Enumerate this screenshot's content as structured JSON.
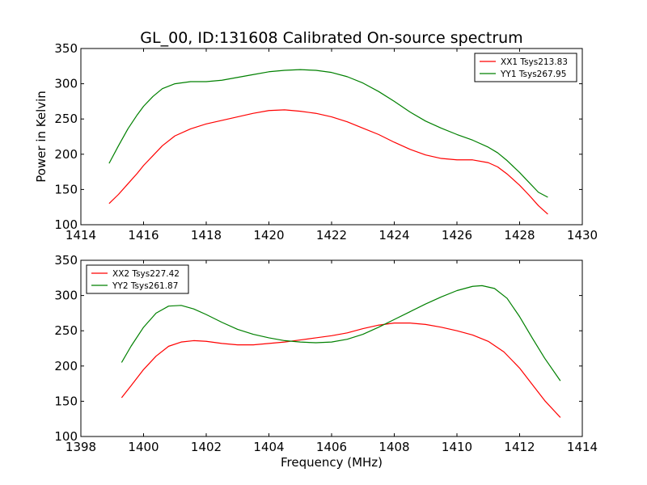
{
  "figure": {
    "title": "GL_00, ID:131608 Calibrated On-source spectrum",
    "ylabel": "Power in Kelvin",
    "xlabel": "Frequency (MHz)"
  },
  "chart_data": [
    {
      "type": "line",
      "title": "GL_00, ID:131608 Calibrated On-source spectrum",
      "xlabel": "",
      "ylabel": "Power in Kelvin",
      "xlim": [
        1414,
        1430
      ],
      "ylim": [
        100,
        350
      ],
      "xticks": [
        "1414",
        "1416",
        "1418",
        "1420",
        "1422",
        "1424",
        "1426",
        "1428",
        "1430"
      ],
      "yticks": [
        "100",
        "150",
        "200",
        "250",
        "300",
        "350"
      ],
      "grid": false,
      "legend_position": "top-right",
      "series": [
        {
          "name": "XX1 Tsys213.83",
          "color": "#ff0000",
          "x": [
            1414.9,
            1415.2,
            1415.5,
            1415.8,
            1416.0,
            1416.3,
            1416.6,
            1417.0,
            1417.5,
            1418.0,
            1418.5,
            1419.0,
            1419.5,
            1420.0,
            1420.5,
            1421.0,
            1421.5,
            1422.0,
            1422.5,
            1423.0,
            1423.5,
            1424.0,
            1424.5,
            1425.0,
            1425.5,
            1426.0,
            1426.5,
            1427.0,
            1427.3,
            1427.6,
            1428.0,
            1428.3,
            1428.6,
            1428.9
          ],
          "y": [
            130,
            143,
            158,
            173,
            184,
            198,
            212,
            226,
            236,
            243,
            248,
            253,
            258,
            262,
            263,
            261,
            258,
            253,
            246,
            237,
            228,
            217,
            207,
            199,
            194,
            192,
            192,
            188,
            182,
            172,
            156,
            142,
            127,
            115
          ]
        },
        {
          "name": "YY1 Tsys267.95",
          "color": "#008000",
          "x": [
            1414.9,
            1415.2,
            1415.5,
            1415.8,
            1416.0,
            1416.3,
            1416.6,
            1417.0,
            1417.5,
            1418.0,
            1418.5,
            1419.0,
            1419.5,
            1420.0,
            1420.5,
            1421.0,
            1421.5,
            1422.0,
            1422.5,
            1423.0,
            1423.5,
            1424.0,
            1424.5,
            1425.0,
            1425.5,
            1426.0,
            1426.5,
            1427.0,
            1427.3,
            1427.6,
            1428.0,
            1428.3,
            1428.6,
            1428.9
          ],
          "y": [
            187,
            212,
            236,
            256,
            268,
            282,
            293,
            300,
            303,
            303,
            305,
            309,
            313,
            317,
            319,
            320,
            319,
            316,
            310,
            301,
            289,
            275,
            260,
            247,
            237,
            228,
            220,
            210,
            202,
            191,
            174,
            160,
            146,
            139
          ]
        }
      ]
    },
    {
      "type": "line",
      "title": "",
      "xlabel": "Frequency (MHz)",
      "ylabel": "",
      "xlim": [
        1398,
        1414
      ],
      "ylim": [
        100,
        350
      ],
      "xticks": [
        "1398",
        "1400",
        "1402",
        "1404",
        "1406",
        "1408",
        "1410",
        "1412",
        "1414"
      ],
      "yticks": [
        "100",
        "150",
        "200",
        "250",
        "300",
        "350"
      ],
      "grid": false,
      "legend_position": "top-left",
      "series": [
        {
          "name": "XX2 Tsys227.42",
          "color": "#ff0000",
          "x": [
            1399.3,
            1399.6,
            1400.0,
            1400.4,
            1400.8,
            1401.2,
            1401.6,
            1402.0,
            1402.5,
            1403.0,
            1403.5,
            1404.0,
            1404.5,
            1405.0,
            1405.5,
            1406.0,
            1406.5,
            1407.0,
            1407.5,
            1408.0,
            1408.5,
            1409.0,
            1409.5,
            1410.0,
            1410.5,
            1411.0,
            1411.5,
            1412.0,
            1412.4,
            1412.8,
            1413.3
          ],
          "y": [
            155,
            172,
            195,
            214,
            228,
            234,
            236,
            235,
            232,
            230,
            230,
            232,
            234,
            237,
            240,
            243,
            247,
            253,
            258,
            261,
            261,
            259,
            255,
            250,
            244,
            235,
            220,
            197,
            174,
            151,
            127
          ]
        },
        {
          "name": "YY2 Tsys261.87",
          "color": "#008000",
          "x": [
            1399.3,
            1399.6,
            1400.0,
            1400.4,
            1400.8,
            1401.2,
            1401.6,
            1402.0,
            1402.5,
            1403.0,
            1403.5,
            1404.0,
            1404.5,
            1405.0,
            1405.5,
            1406.0,
            1406.5,
            1407.0,
            1407.5,
            1408.0,
            1408.5,
            1409.0,
            1409.5,
            1410.0,
            1410.5,
            1410.8,
            1411.2,
            1411.6,
            1412.0,
            1412.4,
            1412.8,
            1413.3
          ],
          "y": [
            205,
            228,
            255,
            275,
            285,
            286,
            281,
            273,
            262,
            252,
            245,
            240,
            236,
            234,
            233,
            234,
            238,
            245,
            255,
            266,
            277,
            288,
            298,
            307,
            313,
            314,
            310,
            296,
            270,
            240,
            211,
            179
          ]
        }
      ]
    }
  ]
}
